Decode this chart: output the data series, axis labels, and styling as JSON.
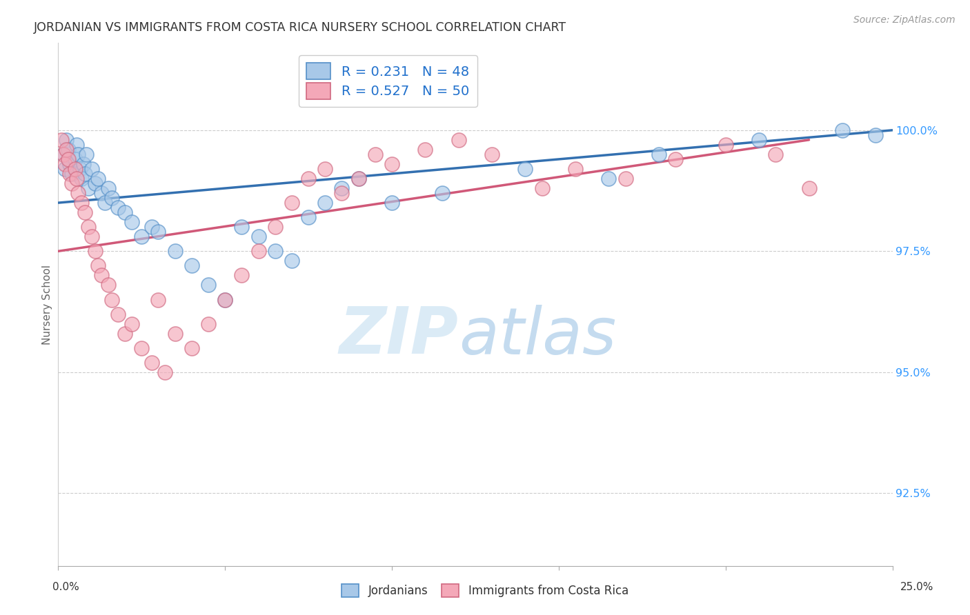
{
  "title": "JORDANIAN VS IMMIGRANTS FROM COSTA RICA NURSERY SCHOOL CORRELATION CHART",
  "source": "Source: ZipAtlas.com",
  "ylabel": "Nursery School",
  "ytick_vals": [
    92.5,
    95.0,
    97.5,
    100.0
  ],
  "xlim": [
    0.0,
    25.0
  ],
  "ylim": [
    91.0,
    101.8
  ],
  "legend_blue": "R = 0.231   N = 48",
  "legend_pink": "R = 0.527   N = 50",
  "legend_label_blue": "Jordanians",
  "legend_label_pink": "Immigrants from Costa Rica",
  "blue_fill": "#a8c8e8",
  "blue_edge": "#5590c8",
  "pink_fill": "#f4a8b8",
  "pink_edge": "#d06880",
  "blue_line_color": "#3370b0",
  "pink_line_color": "#d05878",
  "blue_scatter_x": [
    0.15,
    0.2,
    0.25,
    0.3,
    0.35,
    0.4,
    0.5,
    0.55,
    0.6,
    0.65,
    0.7,
    0.75,
    0.8,
    0.85,
    0.9,
    1.0,
    1.1,
    1.2,
    1.3,
    1.4,
    1.5,
    1.6,
    1.8,
    2.0,
    2.2,
    2.5,
    2.8,
    3.0,
    3.5,
    4.0,
    4.5,
    5.0,
    5.5,
    6.0,
    6.5,
    7.0,
    7.5,
    8.0,
    8.5,
    9.0,
    10.0,
    11.5,
    14.0,
    16.5,
    18.0,
    21.0,
    23.5,
    24.5
  ],
  "blue_scatter_y": [
    99.5,
    99.2,
    99.8,
    99.6,
    99.3,
    99.1,
    99.4,
    99.7,
    99.5,
    99.2,
    99.0,
    99.3,
    99.1,
    99.5,
    98.8,
    99.2,
    98.9,
    99.0,
    98.7,
    98.5,
    98.8,
    98.6,
    98.4,
    98.3,
    98.1,
    97.8,
    98.0,
    97.9,
    97.5,
    97.2,
    96.8,
    96.5,
    98.0,
    97.8,
    97.5,
    97.3,
    98.2,
    98.5,
    98.8,
    99.0,
    98.5,
    98.7,
    99.2,
    99.0,
    99.5,
    99.8,
    100.0,
    99.9
  ],
  "pink_scatter_x": [
    0.1,
    0.15,
    0.2,
    0.25,
    0.3,
    0.35,
    0.4,
    0.5,
    0.55,
    0.6,
    0.7,
    0.8,
    0.9,
    1.0,
    1.1,
    1.2,
    1.3,
    1.5,
    1.6,
    1.8,
    2.0,
    2.2,
    2.5,
    2.8,
    3.0,
    3.2,
    3.5,
    4.0,
    4.5,
    5.0,
    5.5,
    6.0,
    6.5,
    7.0,
    7.5,
    8.0,
    8.5,
    9.0,
    9.5,
    10.0,
    11.0,
    12.0,
    13.0,
    14.5,
    15.5,
    17.0,
    18.5,
    20.0,
    21.5,
    22.5
  ],
  "pink_scatter_y": [
    99.8,
    99.5,
    99.3,
    99.6,
    99.4,
    99.1,
    98.9,
    99.2,
    99.0,
    98.7,
    98.5,
    98.3,
    98.0,
    97.8,
    97.5,
    97.2,
    97.0,
    96.8,
    96.5,
    96.2,
    95.8,
    96.0,
    95.5,
    95.2,
    96.5,
    95.0,
    95.8,
    95.5,
    96.0,
    96.5,
    97.0,
    97.5,
    98.0,
    98.5,
    99.0,
    99.2,
    98.7,
    99.0,
    99.5,
    99.3,
    99.6,
    99.8,
    99.5,
    98.8,
    99.2,
    99.0,
    99.4,
    99.7,
    99.5,
    98.8
  ],
  "blue_line_x0": 0.0,
  "blue_line_x1": 25.0,
  "blue_line_y0": 98.5,
  "blue_line_y1": 100.0,
  "pink_line_x0": 0.0,
  "pink_line_x1": 22.5,
  "pink_line_y0": 97.5,
  "pink_line_y1": 99.8,
  "background_color": "#ffffff",
  "grid_color": "#cccccc",
  "tick_color": "#3399ff",
  "title_color": "#333333",
  "ylabel_color": "#666666"
}
